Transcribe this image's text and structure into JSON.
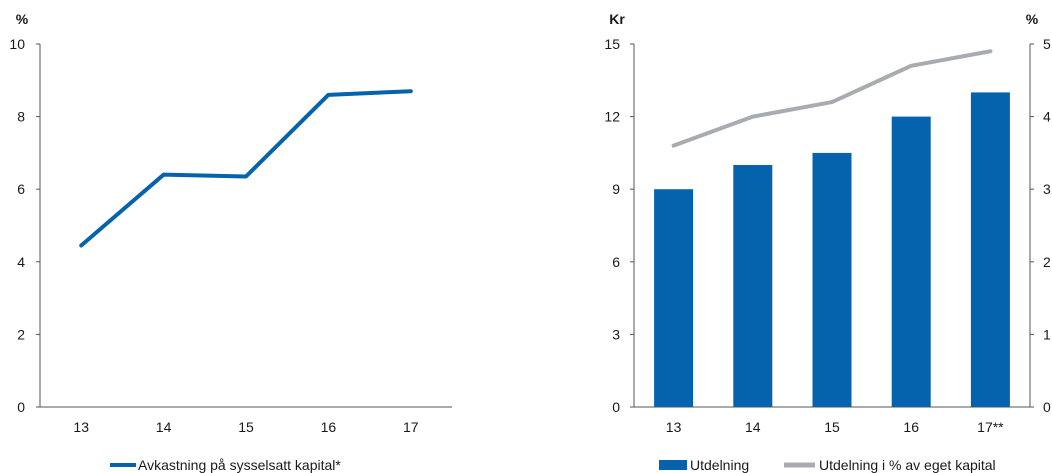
{
  "colors": {
    "primary": "#0563ad",
    "secondary": "#a8abb0",
    "axis": "#555555"
  },
  "chart_data": [
    {
      "type": "line",
      "unit_label": "%",
      "categories": [
        "13",
        "14",
        "15",
        "16",
        "17"
      ],
      "series": [
        {
          "name": "Avkastning på sysselsatt kapital*",
          "values": [
            4.45,
            6.4,
            6.35,
            8.6,
            8.7
          ]
        }
      ],
      "ylim": [
        0,
        10
      ],
      "yticks": [
        "0",
        "2",
        "4",
        "6",
        "8",
        "10"
      ],
      "legend_position": "bottom"
    },
    {
      "type": "bar",
      "unit_label_left": "Kr",
      "unit_label_right": "%",
      "categories": [
        "13",
        "14",
        "15",
        "16",
        "17**"
      ],
      "series": [
        {
          "name": "Utdelning",
          "type": "bar",
          "axis": "left",
          "values": [
            9.0,
            10.0,
            10.5,
            12.0,
            13.0
          ]
        },
        {
          "name": "Utdelning i % av eget kapital",
          "type": "line",
          "axis": "right",
          "values": [
            3.6,
            4.0,
            4.2,
            4.7,
            4.9
          ]
        }
      ],
      "ylim_left": [
        0,
        15
      ],
      "ylim_right": [
        0,
        5
      ],
      "yticks_left": [
        "0",
        "3",
        "6",
        "9",
        "12",
        "15"
      ],
      "yticks_right": [
        "0",
        "1",
        "2",
        "3",
        "4",
        "5"
      ],
      "legend_position": "bottom"
    }
  ]
}
